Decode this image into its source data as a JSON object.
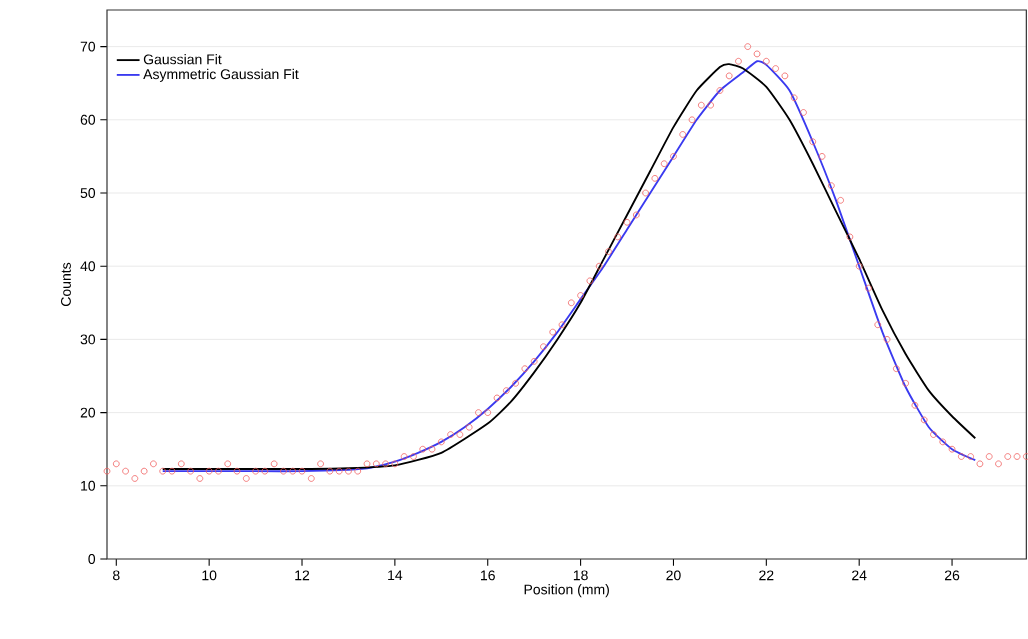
{
  "chart_data": {
    "type": "scatter",
    "xlabel": "Position (mm)",
    "ylabel": "Counts",
    "xlim": [
      7.8,
      27.6
    ],
    "ylim": [
      0,
      75
    ],
    "xticks": [
      8,
      10,
      12,
      14,
      16,
      18,
      20,
      22,
      24,
      26
    ],
    "yticks": [
      0,
      10,
      20,
      30,
      40,
      50,
      60,
      70
    ],
    "grid": "y",
    "legend": "top left",
    "series": [
      {
        "color": "#f06060",
        "marker": "circle",
        "x": [
          7.8,
          8.0,
          8.2,
          8.4,
          8.6,
          8.8,
          9.0,
          9.2,
          9.4,
          9.6,
          9.8,
          10.0,
          10.2,
          10.4,
          10.6,
          10.8,
          11.0,
          11.2,
          11.4,
          11.6,
          11.8,
          12.0,
          12.2,
          12.4,
          12.6,
          12.8,
          13.0,
          13.2,
          13.4,
          13.6,
          13.8,
          14.0,
          14.2,
          14.4,
          14.6,
          14.8,
          15.0,
          15.2,
          15.4,
          15.6,
          15.8,
          16.0,
          16.2,
          16.4,
          16.6,
          16.8,
          17.0,
          17.2,
          17.4,
          17.6,
          17.8,
          18.0,
          18.2,
          18.4,
          18.6,
          18.8,
          19.0,
          19.2,
          19.4,
          19.6,
          19.8,
          20.0,
          20.2,
          20.4,
          20.6,
          20.8,
          21.0,
          21.2,
          21.4,
          21.6,
          21.8,
          22.0,
          22.2,
          22.4,
          22.6,
          22.8,
          23.0,
          23.2,
          23.4,
          23.6,
          23.8,
          24.0,
          24.2,
          24.4,
          24.6,
          24.8,
          25.0,
          25.2,
          25.4,
          25.6,
          25.8,
          26.0,
          26.2,
          26.4,
          26.6,
          26.8,
          27.0,
          27.2,
          27.4,
          27.6
        ],
        "values": [
          12,
          13,
          12,
          11,
          12,
          13,
          12,
          12,
          13,
          12,
          11,
          12,
          12,
          13,
          12,
          11,
          12,
          12,
          13,
          12,
          12,
          12,
          11,
          13,
          12,
          12,
          12,
          12,
          13,
          13,
          13,
          13,
          14,
          14,
          15,
          15,
          16,
          17,
          17,
          18,
          20,
          20,
          22,
          23,
          24,
          26,
          27,
          29,
          31,
          32,
          35,
          36,
          38,
          40,
          42,
          44,
          46,
          47,
          50,
          52,
          54,
          55,
          58,
          60,
          62,
          62,
          64,
          66,
          68,
          70,
          69,
          68,
          67,
          66,
          63,
          61,
          57,
          55,
          51,
          49,
          44,
          40,
          37,
          32,
          30,
          26,
          24,
          21,
          19,
          17,
          16,
          15,
          14,
          14,
          13,
          14,
          13,
          14,
          14,
          14
        ]
      },
      {
        "type": "line",
        "name": "Gaussian Fit",
        "color": "#000000",
        "x": [
          9,
          10,
          11,
          12,
          13,
          14,
          15,
          16,
          16.5,
          17,
          17.5,
          18,
          18.5,
          19,
          19.5,
          20,
          20.5,
          21,
          21.2,
          21.5,
          22,
          22.5,
          23,
          23.5,
          24,
          24.5,
          25,
          25.5,
          26,
          26.5
        ],
        "values": [
          12.3,
          12.3,
          12.3,
          12.3,
          12.4,
          12.8,
          14.5,
          18.5,
          21.5,
          25.5,
          30,
          35,
          41,
          47,
          53,
          59,
          64,
          67.2,
          67.6,
          67,
          64.5,
          60,
          54,
          47.5,
          41,
          34,
          28,
          23,
          19.5,
          16.5
        ]
      },
      {
        "type": "line",
        "name": "Asymmetric Gaussian Fit",
        "color": "#3a3af0",
        "x": [
          9,
          10,
          11,
          12,
          13,
          13.5,
          14,
          14.5,
          15,
          15.5,
          16,
          16.5,
          17,
          17.5,
          18,
          18.5,
          19,
          19.5,
          20,
          20.5,
          21,
          21.5,
          21.8,
          22,
          22.5,
          23,
          23.5,
          24,
          24.5,
          25,
          25.5,
          26,
          26.5
        ],
        "values": [
          12,
          12,
          12,
          12,
          12.2,
          12.5,
          13.3,
          14.5,
          16,
          18,
          20.5,
          23.5,
          27,
          31,
          35.5,
          40,
          45,
          50,
          55,
          60,
          64,
          66.5,
          68,
          67.5,
          64,
          57,
          49,
          40,
          31,
          23.5,
          18,
          15,
          13.5
        ]
      }
    ]
  }
}
